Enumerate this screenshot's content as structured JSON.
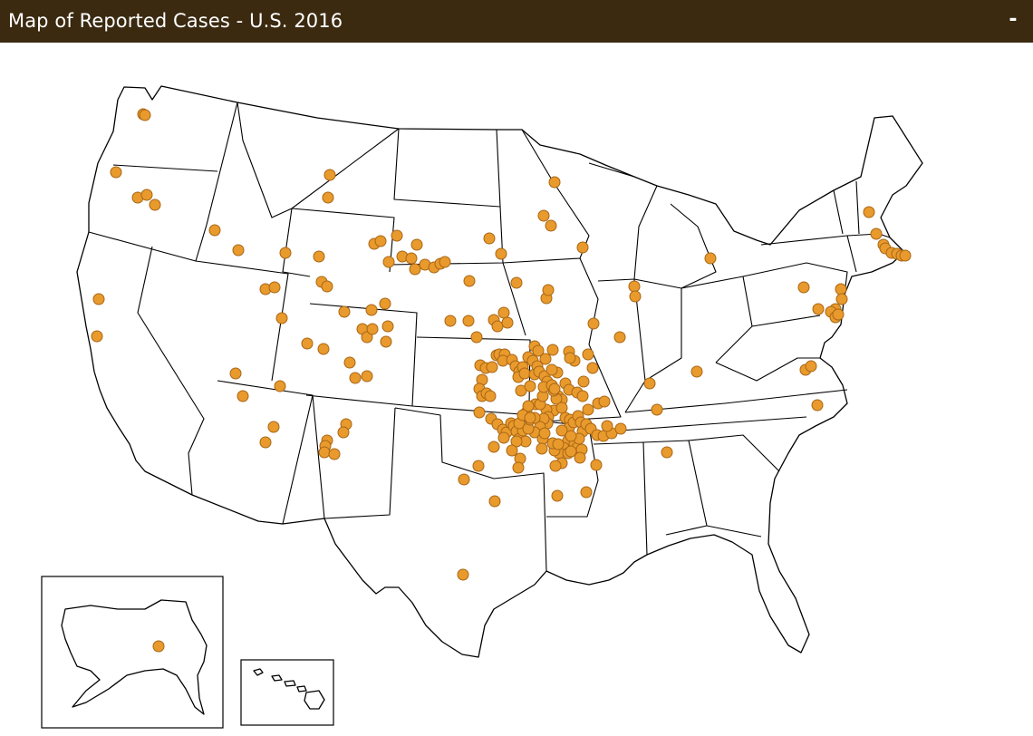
{
  "window": {
    "title": "Map of Reported Cases - U.S. 2016",
    "minimize_label": "-"
  },
  "colors": {
    "titlebar_bg": "#3b2a10",
    "case_marker": "#e99a2c"
  },
  "map": {
    "type": "point-map",
    "region": "United States",
    "insets": [
      "Alaska",
      "Hawaii"
    ],
    "case_count": 232
  }
}
